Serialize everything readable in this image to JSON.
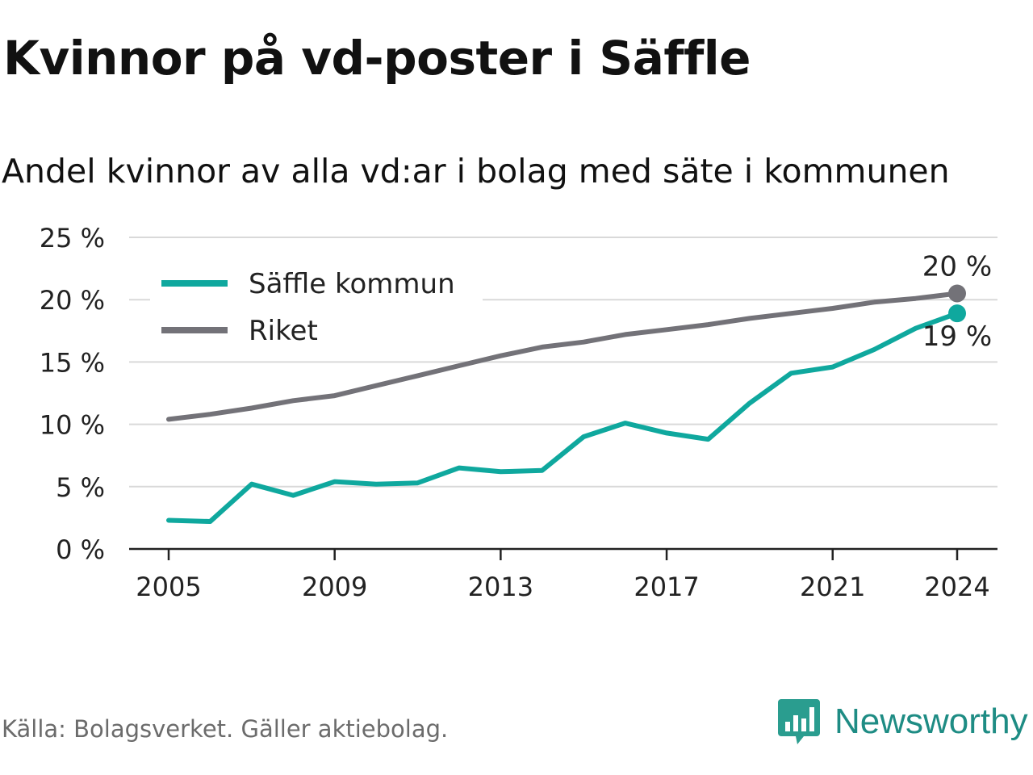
{
  "title": "Kvinnor på vd-poster i Säffle",
  "subtitle": "Andel kvinnor av alla vd:ar i bolag med säte i kommunen",
  "source": "Källa: Bolagsverket. Gäller aktiebolag.",
  "brand": {
    "name": "Newsworthy",
    "icon": "newsworthy-logo-icon",
    "color": "#2a9d8f"
  },
  "chart_data": {
    "type": "line",
    "x": [
      2005,
      2006,
      2007,
      2008,
      2009,
      2010,
      2011,
      2012,
      2013,
      2014,
      2015,
      2016,
      2017,
      2018,
      2019,
      2020,
      2021,
      2022,
      2023,
      2024
    ],
    "xticks": [
      2005,
      2009,
      2013,
      2017,
      2021,
      2024
    ],
    "xtick_labels": [
      "2005",
      "2009",
      "2013",
      "2017",
      "2021",
      "2024"
    ],
    "ylim": [
      0,
      25
    ],
    "yticks": [
      0,
      5,
      10,
      15,
      20,
      25
    ],
    "ytick_labels": [
      "0 %",
      "5 %",
      "10 %",
      "15 %",
      "20 %",
      "25 %"
    ],
    "grid": true,
    "legend_position": "top-left",
    "series": [
      {
        "name": "Säffle kommun",
        "color": "#0fa89e",
        "values": [
          2.3,
          2.2,
          5.2,
          4.3,
          5.4,
          5.2,
          5.3,
          6.5,
          6.2,
          6.3,
          9.0,
          10.1,
          9.3,
          8.8,
          11.7,
          14.1,
          14.6,
          16.0,
          17.7,
          18.9
        ],
        "end_label": "19 %"
      },
      {
        "name": "Riket",
        "color": "#737278",
        "values": [
          10.4,
          10.8,
          11.3,
          11.9,
          12.3,
          13.1,
          13.9,
          14.7,
          15.5,
          16.2,
          16.6,
          17.2,
          17.6,
          18.0,
          18.5,
          18.9,
          19.3,
          19.8,
          20.1,
          20.5
        ],
        "end_label": "20 %"
      }
    ]
  }
}
